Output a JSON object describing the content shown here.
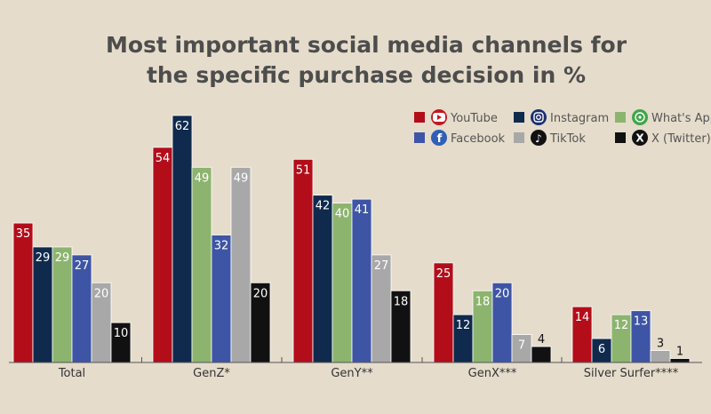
{
  "chart_data": {
    "type": "bar",
    "title": [
      "Most important social media channels for",
      "the specific purchase decision in %"
    ],
    "categories": [
      "Total",
      "GenZ*",
      "GenY**",
      "GenX***",
      "Silver Surfer****"
    ],
    "series": [
      {
        "name": "YouTube",
        "color": "#b30d1a",
        "icon": "youtube-icon",
        "values": [
          35,
          54,
          51,
          25,
          14
        ]
      },
      {
        "name": "Instagram",
        "color": "#0f2a4d",
        "icon": "instagram-icon",
        "values": [
          29,
          62,
          42,
          12,
          6
        ]
      },
      {
        "name": "What's App",
        "color": "#8cb46e",
        "icon": "whatsapp-icon",
        "values": [
          29,
          49,
          40,
          18,
          12
        ]
      },
      {
        "name": "Facebook",
        "color": "#3e55a5",
        "icon": "facebook-icon",
        "values": [
          27,
          32,
          41,
          20,
          13
        ]
      },
      {
        "name": "TikTok",
        "color": "#a8a8a8",
        "icon": "tiktok-icon",
        "values": [
          20,
          49,
          27,
          7,
          3
        ]
      },
      {
        "name": "X (Twitter)",
        "color": "#111111",
        "icon": "x-icon",
        "values": [
          10,
          20,
          18,
          4,
          1
        ]
      }
    ],
    "ylim": [
      0,
      62
    ],
    "grid": false,
    "legend_position": "top-right"
  }
}
